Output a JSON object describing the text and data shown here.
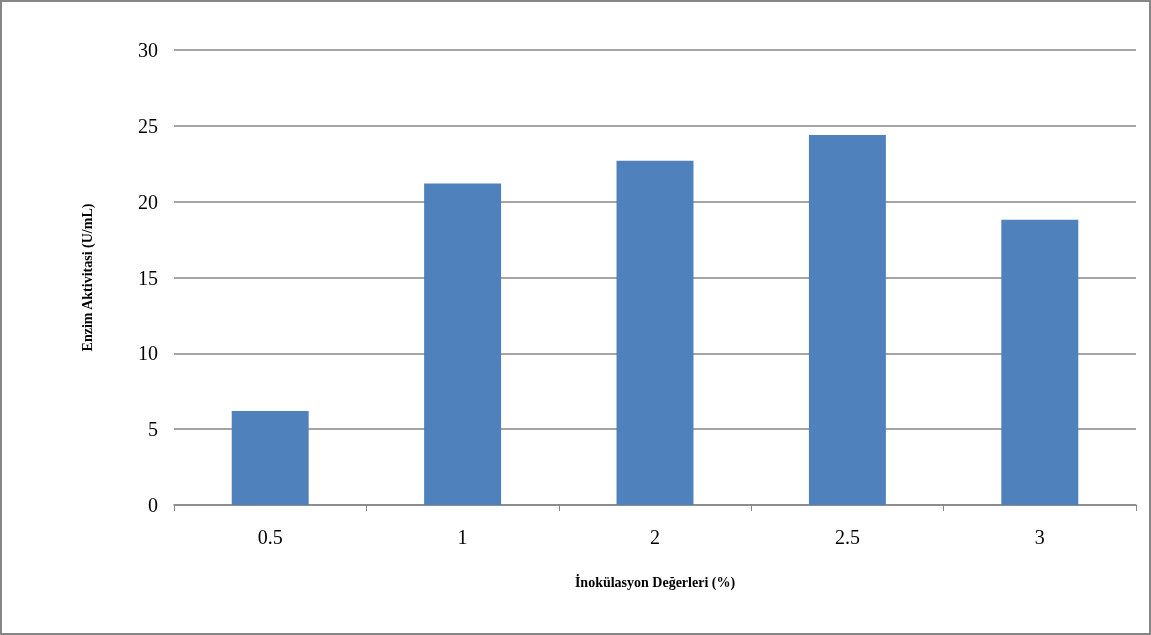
{
  "chart_data": {
    "type": "bar",
    "xlabel": "İnokülasyon Değerleri (%)",
    "ylabel": "Enzim Aktivitasi (U/mL)",
    "categories": [
      "0.5",
      "1",
      "2",
      "2.5",
      "3"
    ],
    "values": [
      6.2,
      21.2,
      22.7,
      24.4,
      18.8
    ],
    "color": "#4f81bd",
    "ylim": [
      0,
      30
    ],
    "yticks": [
      0,
      5,
      10,
      15,
      20,
      25,
      30
    ],
    "grid": "y"
  }
}
